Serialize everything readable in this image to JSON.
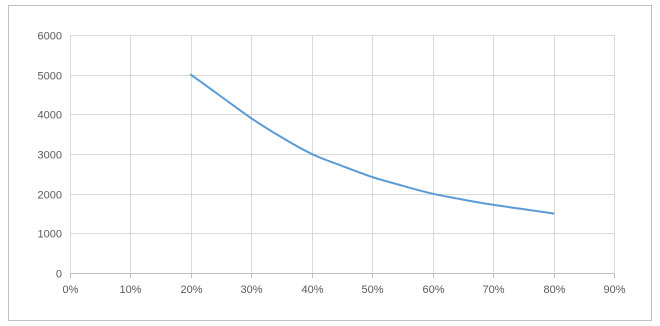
{
  "chart_data": {
    "type": "line",
    "title": "",
    "xlabel": "",
    "ylabel": "",
    "x_format": "percent",
    "xlim": [
      0,
      0.9
    ],
    "ylim": [
      0,
      6000
    ],
    "x_ticks": [
      0,
      0.1,
      0.2,
      0.3,
      0.4,
      0.5,
      0.6,
      0.7,
      0.8,
      0.9
    ],
    "x_tick_labels": [
      "0%",
      "10%",
      "20%",
      "30%",
      "40%",
      "50%",
      "60%",
      "70%",
      "80%",
      "90%"
    ],
    "y_ticks": [
      0,
      1000,
      2000,
      3000,
      4000,
      5000,
      6000
    ],
    "y_tick_labels": [
      "0",
      "1000",
      "2000",
      "3000",
      "4000",
      "5000",
      "6000"
    ],
    "grid": true,
    "legend": "none",
    "series": [
      {
        "color": "#5b9bd5",
        "x": [
          0.2,
          0.25,
          0.3,
          0.35,
          0.4,
          0.45,
          0.5,
          0.55,
          0.6,
          0.65,
          0.7,
          0.75,
          0.8
        ],
        "y": [
          5000,
          4450,
          3900,
          3420,
          3000,
          2700,
          2420,
          2200,
          2000,
          1850,
          1720,
          1610,
          1500
        ]
      }
    ]
  }
}
